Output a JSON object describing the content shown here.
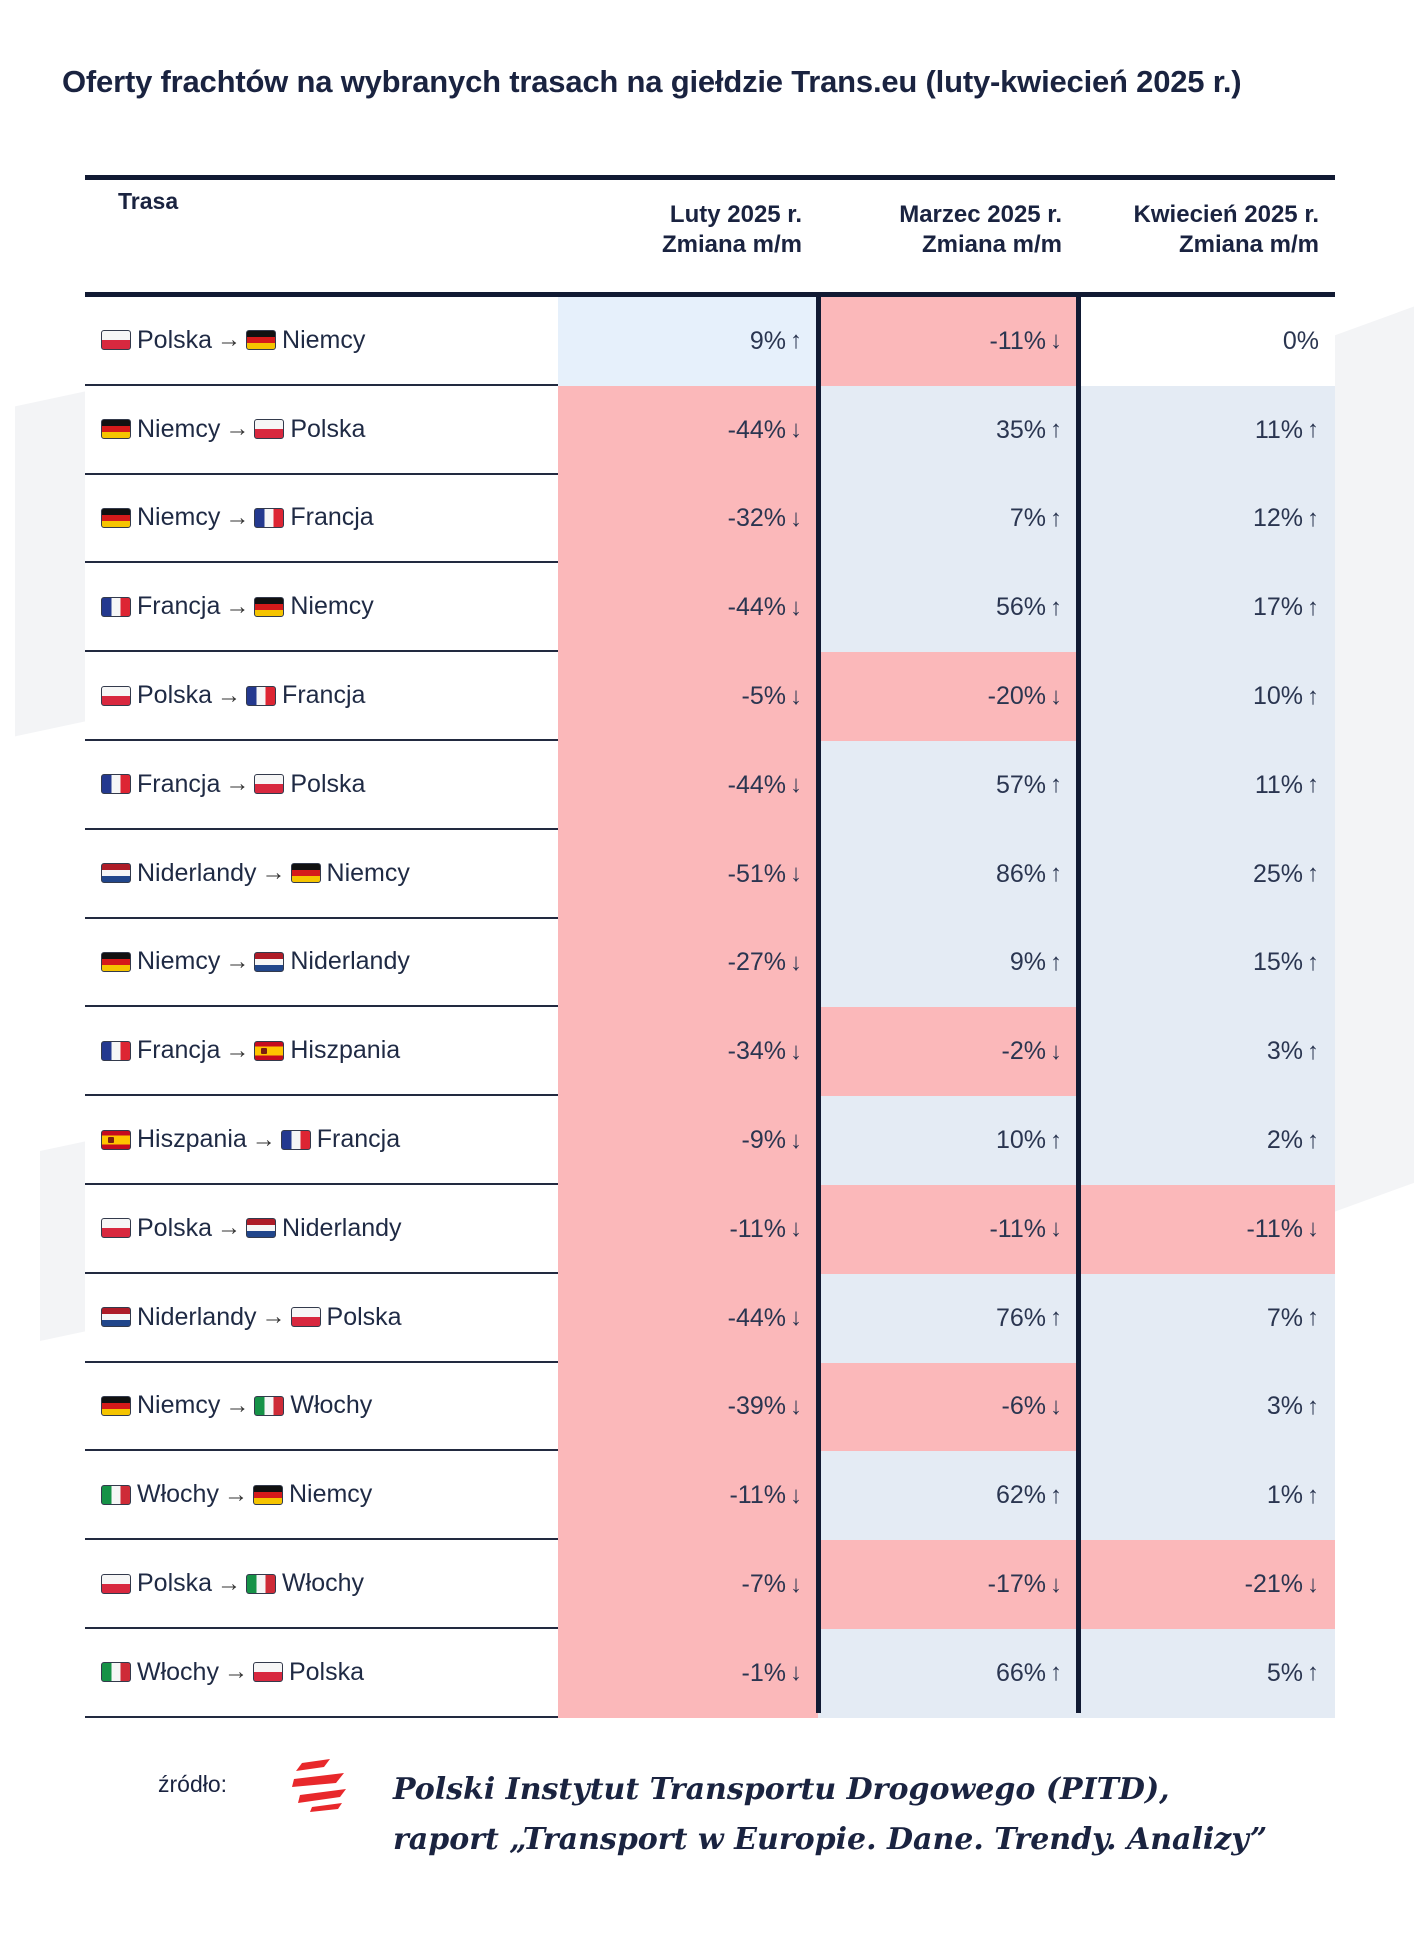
{
  "title": "Oferty frachtów na wybranych trasach na giełdzie Trans.eu (luty-kwiecień 2025 r.)",
  "table": {
    "headers": {
      "route": "Trasa",
      "col1": [
        "Luty 2025 r.",
        "Zmiana m/m"
      ],
      "col2": [
        "Marzec 2025 r.",
        "Zmiana m/m"
      ],
      "col3": [
        "Kwiecień 2025 r.",
        "Zmiana m/m"
      ]
    },
    "rows": [
      {
        "from": "Polska",
        "from_flag": "pl",
        "to": "Niemcy",
        "to_flag": "de",
        "values": [
          "9%",
          "-11%",
          "0%"
        ],
        "dirs": [
          "up",
          "down",
          "none"
        ]
      },
      {
        "from": "Niemcy",
        "from_flag": "de",
        "to": "Polska",
        "to_flag": "pl",
        "values": [
          "-44%",
          "35%",
          "11%"
        ],
        "dirs": [
          "down",
          "up",
          "up"
        ]
      },
      {
        "from": "Niemcy",
        "from_flag": "de",
        "to": "Francja",
        "to_flag": "fr",
        "values": [
          "-32%",
          "7%",
          "12%"
        ],
        "dirs": [
          "down",
          "up",
          "up"
        ]
      },
      {
        "from": "Francja",
        "from_flag": "fr",
        "to": "Niemcy",
        "to_flag": "de",
        "values": [
          "-44%",
          "56%",
          "17%"
        ],
        "dirs": [
          "down",
          "up",
          "up"
        ]
      },
      {
        "from": "Polska",
        "from_flag": "pl",
        "to": "Francja",
        "to_flag": "fr",
        "values": [
          "-5%",
          "-20%",
          "10%"
        ],
        "dirs": [
          "down",
          "down",
          "up"
        ]
      },
      {
        "from": "Francja",
        "from_flag": "fr",
        "to": "Polska",
        "to_flag": "pl",
        "values": [
          "-44%",
          "57%",
          "11%"
        ],
        "dirs": [
          "down",
          "up",
          "up"
        ]
      },
      {
        "from": "Niderlandy",
        "from_flag": "nl",
        "to": "Niemcy",
        "to_flag": "de",
        "values": [
          "-51%",
          "86%",
          "25%"
        ],
        "dirs": [
          "down",
          "up",
          "up"
        ]
      },
      {
        "from": "Niemcy",
        "from_flag": "de",
        "to": "Niderlandy",
        "to_flag": "nl",
        "values": [
          "-27%",
          "9%",
          "15%"
        ],
        "dirs": [
          "down",
          "up",
          "up"
        ]
      },
      {
        "from": "Francja",
        "from_flag": "fr",
        "to": "Hiszpania",
        "to_flag": "es",
        "values": [
          "-34%",
          "-2%",
          "3%"
        ],
        "dirs": [
          "down",
          "down",
          "up"
        ]
      },
      {
        "from": "Hiszpania",
        "from_flag": "es",
        "to": "Francja",
        "to_flag": "fr",
        "values": [
          "-9%",
          "10%",
          "2%"
        ],
        "dirs": [
          "down",
          "up",
          "up"
        ]
      },
      {
        "from": "Polska",
        "from_flag": "pl",
        "to": "Niderlandy",
        "to_flag": "nl",
        "values": [
          "-11%",
          "-11%",
          "-11%"
        ],
        "dirs": [
          "down",
          "down",
          "down"
        ]
      },
      {
        "from": "Niderlandy",
        "from_flag": "nl",
        "to": "Polska",
        "to_flag": "pl",
        "values": [
          "-44%",
          "76%",
          "7%"
        ],
        "dirs": [
          "down",
          "up",
          "up"
        ]
      },
      {
        "from": "Niemcy",
        "from_flag": "de",
        "to": "Włochy",
        "to_flag": "it",
        "values": [
          "-39%",
          "-6%",
          "3%"
        ],
        "dirs": [
          "down",
          "down",
          "up"
        ]
      },
      {
        "from": "Włochy",
        "from_flag": "it",
        "to": "Niemcy",
        "to_flag": "de",
        "values": [
          "-11%",
          "62%",
          "1%"
        ],
        "dirs": [
          "down",
          "up",
          "up"
        ]
      },
      {
        "from": "Polska",
        "from_flag": "pl",
        "to": "Włochy",
        "to_flag": "it",
        "values": [
          "-7%",
          "-17%",
          "-21%"
        ],
        "dirs": [
          "down",
          "down",
          "down"
        ]
      },
      {
        "from": "Włochy",
        "from_flag": "it",
        "to": "Polska",
        "to_flag": "pl",
        "values": [
          "-1%",
          "66%",
          "5%"
        ],
        "dirs": [
          "down",
          "up",
          "up"
        ]
      }
    ]
  },
  "footer": {
    "label": "źródło:",
    "source_line1": "Polski Instytut Transportu Drogowego (PITD),",
    "source_line2": "raport „Transport w Europie. Dane. Trendy. Analizy”"
  },
  "colors": {
    "negative_cell": "#fbb8ba",
    "positive_cell": "#e6f0fb",
    "rule": "#111a33",
    "logo": "#e8282b"
  },
  "icons": {
    "arrow_route": "→",
    "trend_up": "↑",
    "trend_down": "↓",
    "logo": "pitd-logo-icon"
  }
}
